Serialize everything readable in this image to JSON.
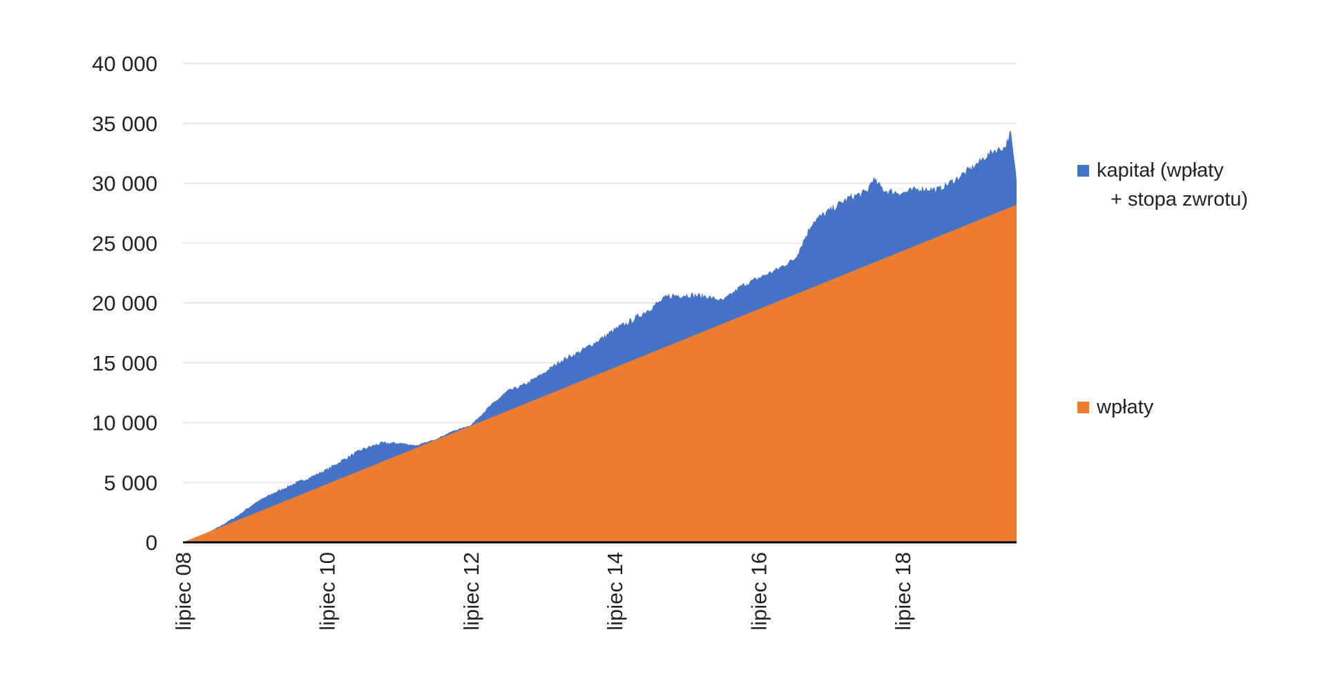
{
  "chart_data": {
    "type": "area",
    "title": "",
    "xlabel": "",
    "ylabel": "",
    "x_start": "2008-07",
    "x_end": "2020-02",
    "x_tick_labels": [
      "lipiec 08",
      "lipiec 10",
      "lipiec 12",
      "lipiec 14",
      "lipiec 16",
      "lipiec 18"
    ],
    "y_ticks": [
      0,
      5000,
      10000,
      15000,
      20000,
      25000,
      30000,
      35000,
      40000
    ],
    "y_tick_labels": [
      "0",
      "5 000",
      "10 000",
      "15 000",
      "20 000",
      "25 000",
      "30 000",
      "35 000",
      "40 000"
    ],
    "ylim": [
      0,
      40000
    ],
    "grid": true,
    "legend_position": "right",
    "series": [
      {
        "name": "kapitał (wpłaty + stopa zwrotu)",
        "color": "#4472C4",
        "points": [
          [
            "2008-07",
            0
          ],
          [
            "2008-10",
            500
          ],
          [
            "2009-01",
            1300
          ],
          [
            "2009-04",
            2200
          ],
          [
            "2009-07",
            3300
          ],
          [
            "2009-10",
            4100
          ],
          [
            "2010-01",
            4800
          ],
          [
            "2010-04",
            5400
          ],
          [
            "2010-07",
            6100
          ],
          [
            "2010-10",
            7000
          ],
          [
            "2011-01",
            7800
          ],
          [
            "2011-04",
            8300
          ],
          [
            "2011-07",
            8300
          ],
          [
            "2011-10",
            8100
          ],
          [
            "2012-01",
            8600
          ],
          [
            "2012-04",
            9300
          ],
          [
            "2012-07",
            9800
          ],
          [
            "2012-10",
            11300
          ],
          [
            "2013-01",
            12600
          ],
          [
            "2013-04",
            13200
          ],
          [
            "2013-07",
            14100
          ],
          [
            "2013-10",
            15200
          ],
          [
            "2014-01",
            15900
          ],
          [
            "2014-04",
            16800
          ],
          [
            "2014-07",
            17800
          ],
          [
            "2014-10",
            18600
          ],
          [
            "2015-01",
            19600
          ],
          [
            "2015-04",
            20600
          ],
          [
            "2015-07",
            20700
          ],
          [
            "2015-10",
            20600
          ],
          [
            "2016-01",
            20200
          ],
          [
            "2016-04",
            21400
          ],
          [
            "2016-07",
            22100
          ],
          [
            "2016-10",
            22800
          ],
          [
            "2017-01",
            23700
          ],
          [
            "2017-04",
            26800
          ],
          [
            "2017-07",
            27800
          ],
          [
            "2017-10",
            28800
          ],
          [
            "2018-01",
            29300
          ],
          [
            "2018-02",
            30400
          ],
          [
            "2018-04",
            29400
          ],
          [
            "2018-07",
            29200
          ],
          [
            "2018-10",
            29600
          ],
          [
            "2019-01",
            29500
          ],
          [
            "2019-04",
            30400
          ],
          [
            "2019-07",
            31500
          ],
          [
            "2019-10",
            32700
          ],
          [
            "2019-12",
            33000
          ],
          [
            "2020-01",
            34300
          ],
          [
            "2020-02",
            30300
          ]
        ]
      },
      {
        "name": "wpłaty",
        "color": "#ED7D31",
        "points": [
          [
            "2008-07",
            0
          ],
          [
            "2020-02",
            28200
          ]
        ]
      }
    ]
  }
}
